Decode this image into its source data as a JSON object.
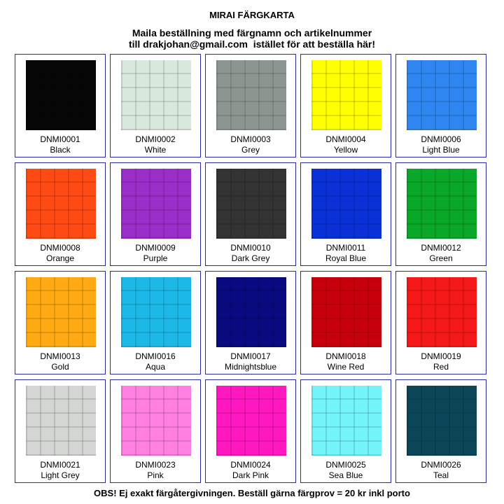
{
  "header": {
    "title": "MIRAI FÄRGKARTA",
    "lines": [
      "Maila beställning med färgnamn och artikelnummer",
      "till drakjohan@gmail.com  istället för att beställa här!"
    ]
  },
  "swatches": [
    {
      "code": "DNMI0001",
      "name": "Black",
      "color": "#060606"
    },
    {
      "code": "DNMI0002",
      "name": "White",
      "color": "#d9e8dd"
    },
    {
      "code": "DNMI0003",
      "name": "Grey",
      "color": "#8b9691"
    },
    {
      "code": "DNMI0004",
      "name": "Yellow",
      "color": "#ffff00"
    },
    {
      "code": "DNMI0006",
      "name": "Light Blue",
      "color": "#2f86f0"
    },
    {
      "code": "DNMI0008",
      "name": "Orange",
      "color": "#ff4a14"
    },
    {
      "code": "DNMI0009",
      "name": "Purple",
      "color": "#9a2ec8"
    },
    {
      "code": "DNMI0010",
      "name": "Dark Grey",
      "color": "#333333"
    },
    {
      "code": "DNMI0011",
      "name": "Royal Blue",
      "color": "#0a30d8"
    },
    {
      "code": "DNMI0012",
      "name": "Green",
      "color": "#0aa828"
    },
    {
      "code": "DNMI0013",
      "name": "Gold",
      "color": "#ffaa12"
    },
    {
      "code": "DNMI0016",
      "name": "Aqua",
      "color": "#1bb8e8"
    },
    {
      "code": "DNMI0017",
      "name": "Midnightsblue",
      "color": "#0a0a80"
    },
    {
      "code": "DNMI0018",
      "name": "Wine Red",
      "color": "#c8000c"
    },
    {
      "code": "DNMI0019",
      "name": "Red",
      "color": "#f41818"
    },
    {
      "code": "DNMI0021",
      "name": "Light Grey",
      "color": "#d4d6d4"
    },
    {
      "code": "DNMI0023",
      "name": "Pink",
      "color": "#ff80e0"
    },
    {
      "code": "DNMI0024",
      "name": "Dark Pink",
      "color": "#ff18c0"
    },
    {
      "code": "DNMI0025",
      "name": "Sea Blue",
      "color": "#72f4f8"
    },
    {
      "code": "DNMI0026",
      "name": "Teal",
      "color": "#0a4658"
    }
  ],
  "footer": "OBS! Ej exakt färgåtergivningen. Beställ gärna färgprov = 20 kr inkl porto"
}
